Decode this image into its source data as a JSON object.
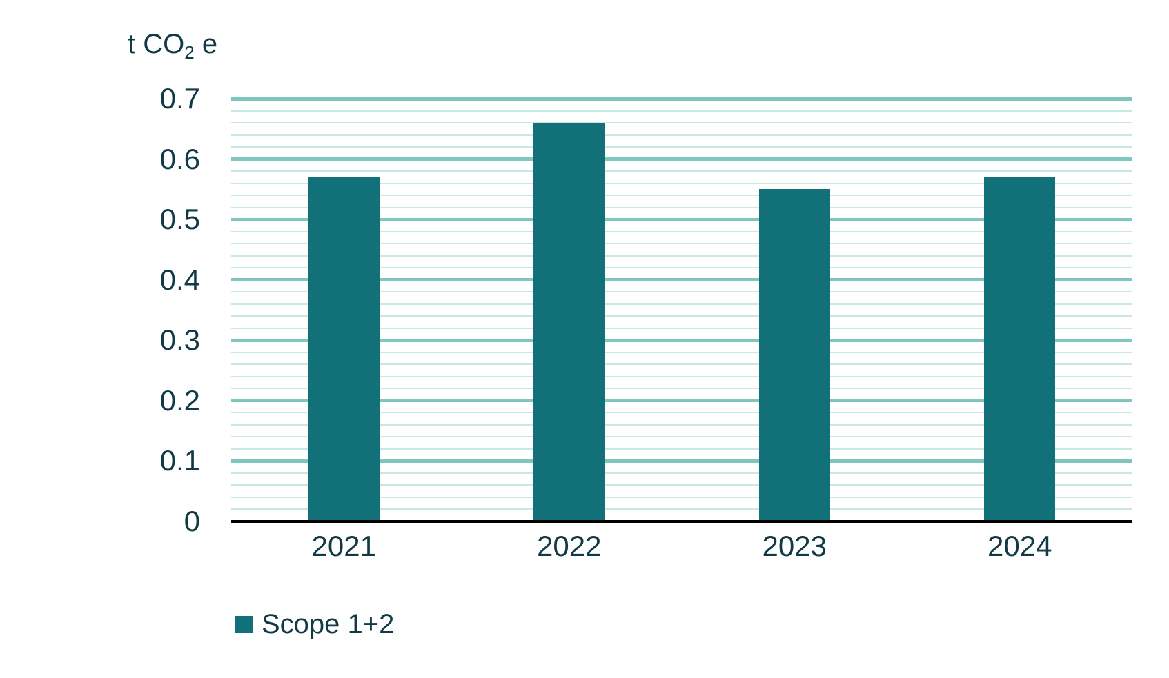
{
  "chart_data": {
    "type": "bar",
    "title": "",
    "ylabel_parts": {
      "prefix": "t CO",
      "sub": "2",
      "suffix": " e"
    },
    "categories": [
      "2021",
      "2022",
      "2023",
      "2024"
    ],
    "series": [
      {
        "name": "Scope 1+2",
        "values": [
          0.57,
          0.66,
          0.55,
          0.57
        ]
      }
    ],
    "ylim": [
      0,
      0.7
    ],
    "ytick_step": 0.1,
    "ytick_labels": [
      "0",
      "0.1",
      "0.2",
      "0.3",
      "0.4",
      "0.5",
      "0.6",
      "0.7"
    ],
    "minor_grid_step": 0.02,
    "grid": true,
    "legend": {
      "position": "bottom-left",
      "entries": [
        {
          "label": "Scope 1+2",
          "swatch_color": "#117078"
        }
      ]
    },
    "colors": {
      "bar": "#117078",
      "grid_major": "#7EC6BE",
      "grid_minor": "#C9E8E3",
      "axis_line": "#000000",
      "text": "#123A46"
    }
  }
}
